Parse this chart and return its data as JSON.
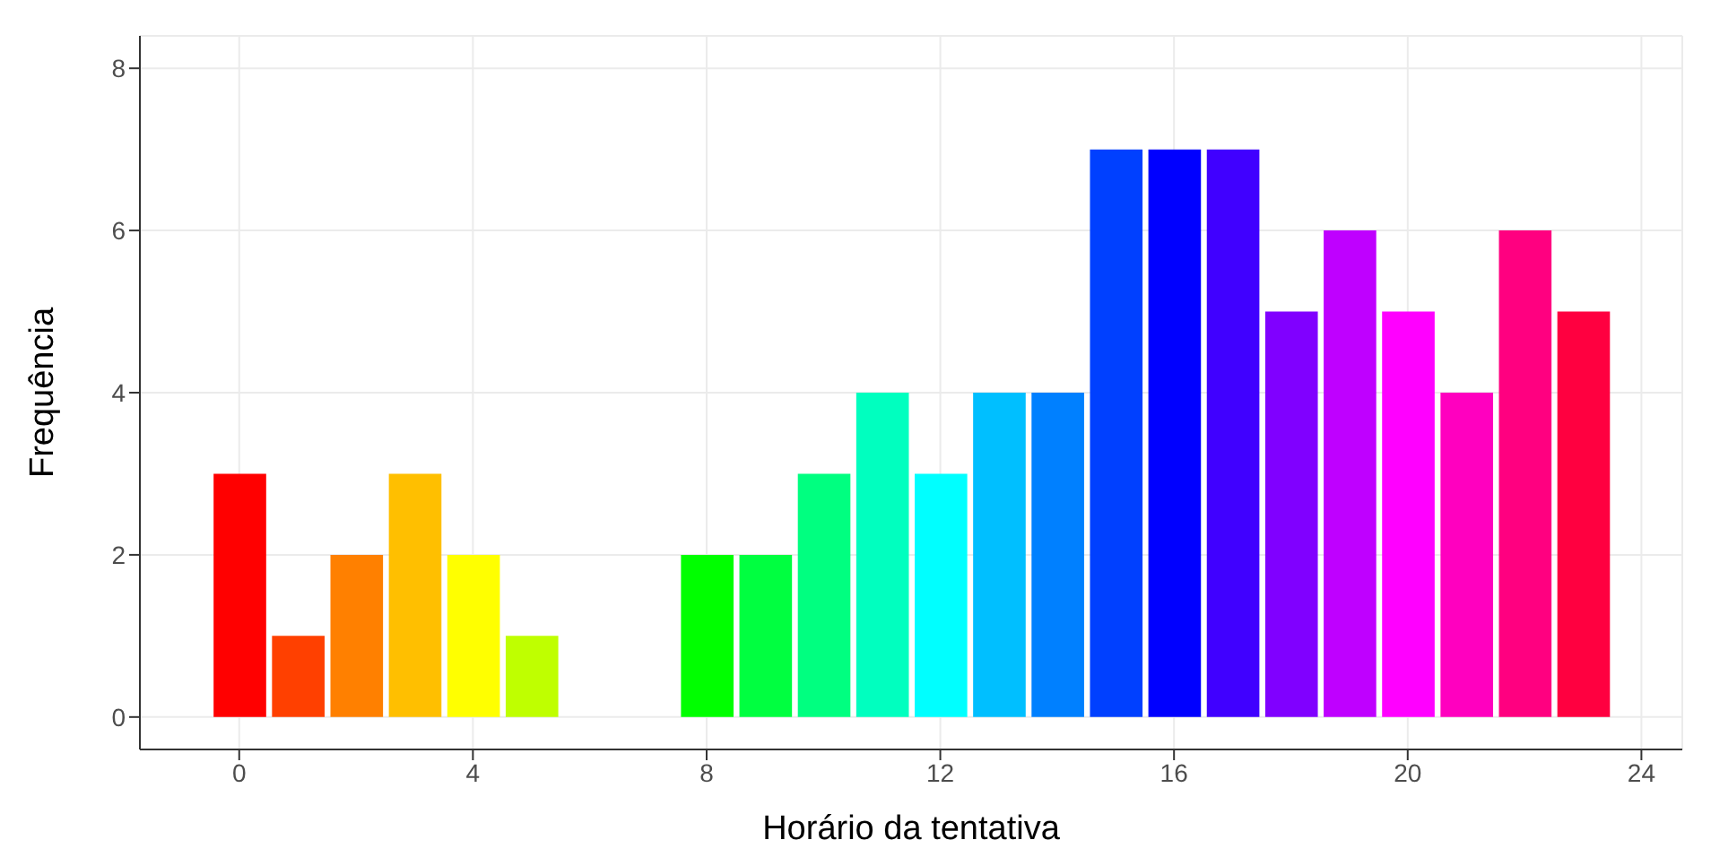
{
  "chart_data": {
    "type": "histogram",
    "xlabel": "Horário da tentativa",
    "ylabel": "Frequência",
    "bins": [
      -0.5,
      0.5,
      1.5,
      2.5,
      3.5,
      4.5,
      5.5,
      6.5,
      7.5,
      8.5,
      9.5,
      10.5,
      11.5,
      12.5,
      13.5,
      14.5,
      15.5,
      16.5,
      17.5,
      18.5,
      19.5,
      20.5,
      21.5,
      22.5,
      23.5
    ],
    "values": [
      3,
      1,
      2,
      3,
      2,
      1,
      0,
      0,
      2,
      2,
      3,
      4,
      3,
      4,
      4,
      7,
      7,
      7,
      5,
      6,
      5,
      4,
      6,
      5
    ],
    "colors": [
      "#ff0000",
      "#ff4000",
      "#ff8000",
      "#ffbf00",
      "#ffff00",
      "#bfff00",
      "#80ff00",
      "#40ff00",
      "#00ff00",
      "#00ff40",
      "#00ff80",
      "#00ffbf",
      "#00ffff",
      "#00bfff",
      "#0080ff",
      "#0040ff",
      "#0000ff",
      "#4000ff",
      "#8000ff",
      "#bf00ff",
      "#ff00ff",
      "#ff00bf",
      "#ff0080",
      "#ff0040"
    ],
    "xlim": [
      -1.7,
      24.7
    ],
    "xticks": [
      0,
      4,
      8,
      12,
      16,
      20,
      24
    ],
    "ylim": [
      -0.4,
      8.4
    ],
    "yticks": [
      0,
      2,
      4,
      6,
      8
    ],
    "grid": true
  }
}
